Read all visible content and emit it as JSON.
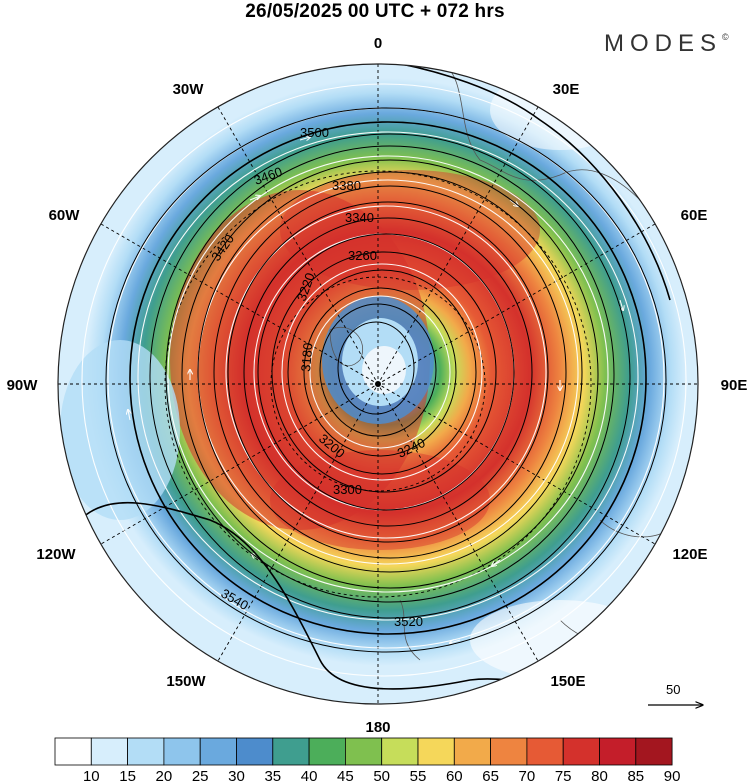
{
  "title": "26/05/2025  00 UTC  + 072 hrs",
  "brand": "MODES",
  "brand_mark": "©",
  "longitude_labels": [
    {
      "id": "lon-0",
      "text": "0"
    },
    {
      "id": "lon-30e",
      "text": "30E"
    },
    {
      "id": "lon-60e",
      "text": "60E"
    },
    {
      "id": "lon-90e",
      "text": "90E"
    },
    {
      "id": "lon-120e",
      "text": "120E"
    },
    {
      "id": "lon-150e",
      "text": "150E"
    },
    {
      "id": "lon-180",
      "text": "180"
    },
    {
      "id": "lon-150w",
      "text": "150W"
    },
    {
      "id": "lon-120w",
      "text": "120W"
    },
    {
      "id": "lon-90w",
      "text": "90W"
    },
    {
      "id": "lon-60w",
      "text": "60W"
    },
    {
      "id": "lon-30w",
      "text": "30W"
    }
  ],
  "contour_labels": [
    "3500",
    "3460",
    "3420",
    "3380",
    "3340",
    "3300",
    "3260",
    "3240",
    "3220",
    "3200",
    "3180",
    "3520",
    "3540"
  ],
  "reference_vector": {
    "label": "50"
  },
  "colorbar": {
    "ticks": [
      "10",
      "15",
      "20",
      "25",
      "30",
      "35",
      "40",
      "45",
      "50",
      "55",
      "60",
      "65",
      "70",
      "75",
      "80",
      "85",
      "90"
    ],
    "colors": [
      "#ffffff",
      "#d7eefc",
      "#b3ddf6",
      "#8ec5ec",
      "#6aa9de",
      "#4d8ccc",
      "#3f9e8f",
      "#4cae5a",
      "#7fc04f",
      "#c6dd5a",
      "#f5d75a",
      "#f2aa4a",
      "#ee8440",
      "#e65a35",
      "#d4312c",
      "#c41e2a",
      "#a3161f"
    ]
  }
}
